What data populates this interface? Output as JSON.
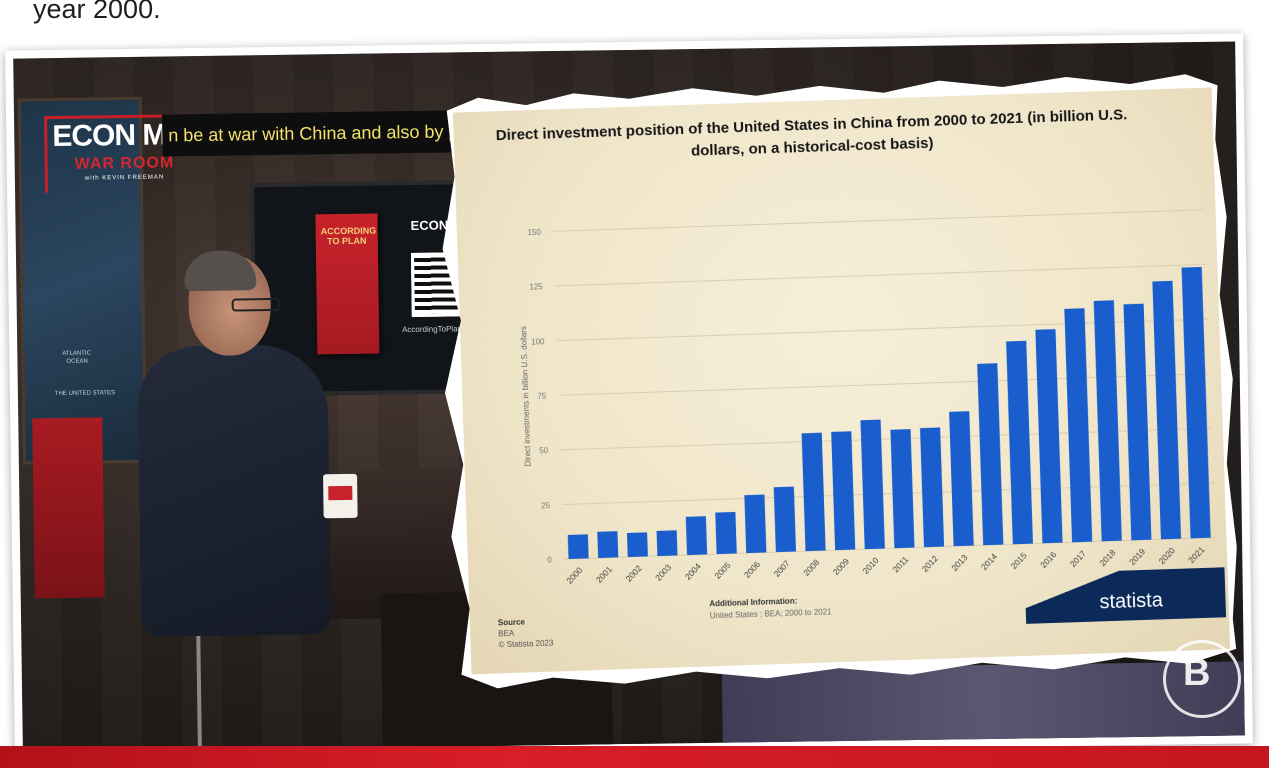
{
  "caption": "year 2000.",
  "logo": {
    "line1": "ECON  MIC",
    "line2": "WAR ROOM",
    "line3": "with KEVIN FREEMAN"
  },
  "ticker": "n be at war with China and also by pro",
  "monitor": {
    "logo": "ECON  MIC",
    "book_title": "ACCORDING TO PLAN",
    "url": "AccordingToPlan"
  },
  "map_labels": [
    "ATLANTIC",
    "OCEAN",
    "THE UNITED STATES"
  ],
  "watermark": "B",
  "chart_data": {
    "type": "bar",
    "title": "Direct investment position of the United States in China from 2000 to 2021 (in billion U.S. dollars, on a historical-cost basis)",
    "ylabel": "Direct investments in billion U.S. dollars",
    "xlabel": "",
    "ylim": [
      0,
      150
    ],
    "yticks": [
      0,
      25,
      50,
      75,
      100,
      125,
      150
    ],
    "grid": true,
    "bar_color": "#1a5dcc",
    "categories": [
      "2000",
      "2001",
      "2002",
      "2003",
      "2004",
      "2005",
      "2006",
      "2007",
      "2008",
      "2009",
      "2010",
      "2011",
      "2012",
      "2013",
      "2014",
      "2015",
      "2016",
      "2017",
      "2018",
      "2019",
      "2020",
      "2021"
    ],
    "values": [
      11,
      12,
      11,
      11.5,
      17.5,
      19,
      26.5,
      29.7,
      53.9,
      54.1,
      59,
      54.2,
      54.5,
      61.5,
      83,
      92.8,
      97.7,
      106.8,
      110,
      108,
      118,
      123.9
    ]
  },
  "source": {
    "title": "Source",
    "name": "BEA",
    "copyright": "© Statista 2023"
  },
  "additional": {
    "title": "Additional Information:",
    "text": "United States ; BEA; 2000 to 2021"
  },
  "brand": "statista"
}
